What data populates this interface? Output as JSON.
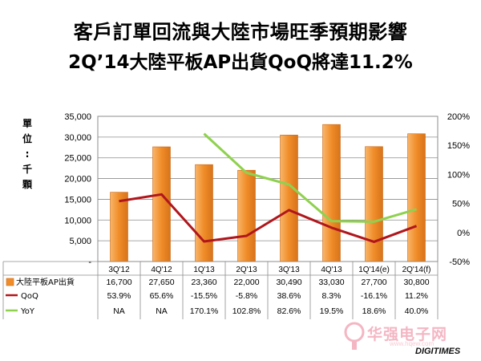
{
  "title": "客戶訂單回流與大陸市場旺季預期影響",
  "subtitle": "2Q’14大陸平板AP出貨QoQ將達11.2%",
  "watermark": {
    "site_name": "华强电子网",
    "site_url": "www.hqew.com"
  },
  "brand": "DIGITIMES",
  "colors": {
    "bar": "#f08c28",
    "qoq": "#b0161c",
    "yoy": "#8fd14f"
  },
  "chart_data": {
    "type": "bar",
    "categories": [
      "3Q'12",
      "4Q'12",
      "1Q'13",
      "2Q'13",
      "3Q'13",
      "4Q'13",
      "1Q'14(e)",
      "2Q'14(f)"
    ],
    "ylabel_chars": [
      "單",
      "位",
      ":",
      "千",
      "顆"
    ],
    "y_left": {
      "lim": [
        0,
        35000
      ],
      "ticks": [
        "-",
        "5,000",
        "10,000",
        "15,000",
        "20,000",
        "25,000",
        "30,000",
        "35,000"
      ]
    },
    "y_right": {
      "lim": [
        -0.5,
        2.0
      ],
      "ticks": [
        "-50%",
        "0%",
        "50%",
        "100%",
        "150%",
        "200%"
      ]
    },
    "series": [
      {
        "name": "大陸平板AP出貨",
        "kind": "bar",
        "values": [
          16700,
          27650,
          23360,
          22000,
          30490,
          33030,
          27700,
          30800
        ]
      },
      {
        "name": "QoQ",
        "kind": "line",
        "axis": "right",
        "values": [
          0.539,
          0.656,
          -0.155,
          -0.058,
          0.386,
          0.083,
          -0.161,
          0.112
        ]
      },
      {
        "name": "YoY",
        "kind": "line",
        "axis": "right",
        "values": [
          null,
          null,
          1.701,
          1.028,
          0.826,
          0.195,
          0.186,
          0.4
        ]
      }
    ],
    "table": {
      "rows": [
        {
          "label": "大陸平板AP出貨",
          "cells": [
            "16,700",
            "27,650",
            "23,360",
            "22,000",
            "30,490",
            "33,030",
            "27,700",
            "30,800"
          ]
        },
        {
          "label": "QoQ",
          "cells": [
            "53.9%",
            "65.6%",
            "-15.5%",
            "-5.8%",
            "38.6%",
            "8.3%",
            "-16.1%",
            "11.2%"
          ]
        },
        {
          "label": "YoY",
          "cells": [
            "NA",
            "NA",
            "170.1%",
            "102.8%",
            "82.6%",
            "19.5%",
            "18.6%",
            "40.0%"
          ]
        }
      ]
    }
  }
}
